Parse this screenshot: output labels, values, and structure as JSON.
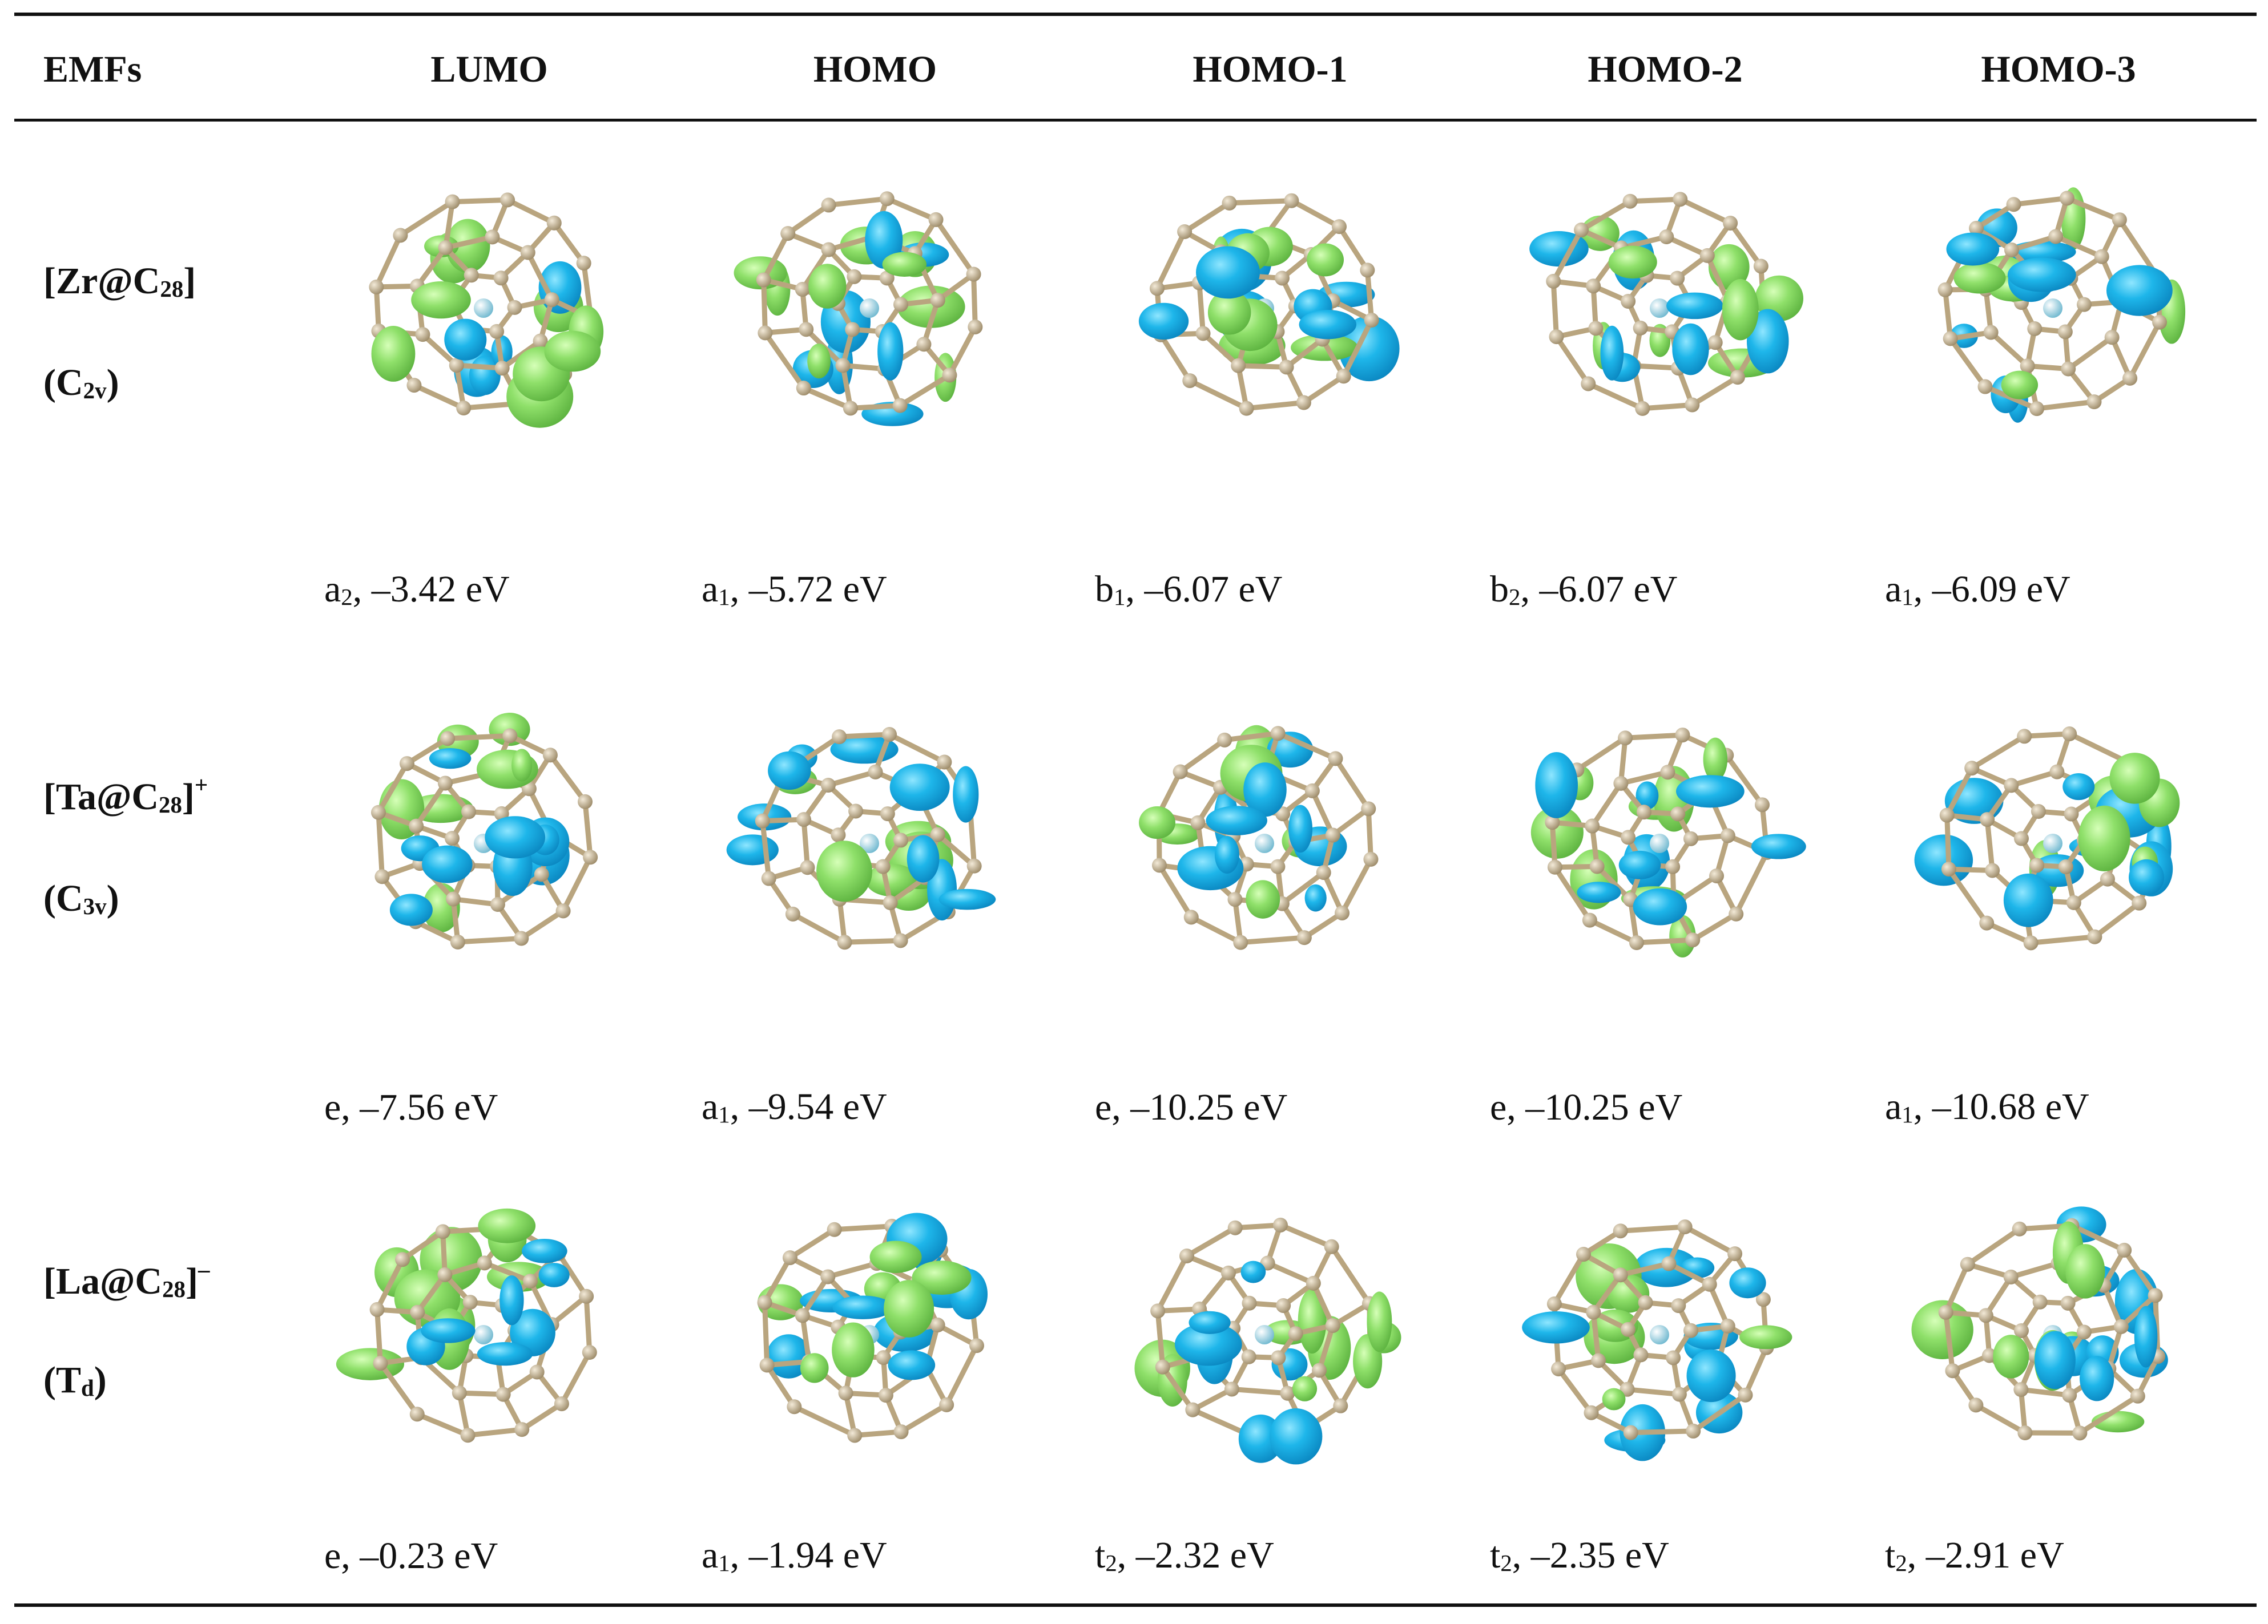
{
  "table": {
    "header": [
      "EMFs",
      "LUMO",
      "HOMO",
      "HOMO-1",
      "HOMO-2",
      "HOMO-3"
    ],
    "rows": [
      {
        "emf": [
          {
            "text": "[Zr@C"
          },
          {
            "text": "28",
            "script": "sub"
          },
          {
            "text": "]"
          }
        ],
        "symmetry": [
          {
            "text": "(C"
          },
          {
            "text": "2v",
            "script": "sub"
          },
          {
            "text": ")"
          }
        ],
        "orbitals": [
          [
            {
              "text": "a"
            },
            {
              "text": "2",
              "script": "sub"
            },
            {
              "text": ", –3.42 eV"
            }
          ],
          [
            {
              "text": "a"
            },
            {
              "text": "1",
              "script": "sub"
            },
            {
              "text": ", –5.72 eV"
            }
          ],
          [
            {
              "text": "b"
            },
            {
              "text": "1",
              "script": "sub"
            },
            {
              "text": ", –6.07 eV"
            }
          ],
          [
            {
              "text": "b"
            },
            {
              "text": "2",
              "script": "sub"
            },
            {
              "text": ", –6.07 eV"
            }
          ],
          [
            {
              "text": "a"
            },
            {
              "text": "1",
              "script": "sub"
            },
            {
              "text": ", –6.09 eV"
            }
          ]
        ]
      },
      {
        "emf": [
          {
            "text": "[Ta@C"
          },
          {
            "text": "28",
            "script": "sub"
          },
          {
            "text": "]"
          },
          {
            "text": "+",
            "script": "sup"
          }
        ],
        "symmetry": [
          {
            "text": "(C"
          },
          {
            "text": "3v",
            "script": "sub"
          },
          {
            "text": ")"
          }
        ],
        "orbitals": [
          [
            {
              "text": "e, –7.56 eV"
            }
          ],
          [
            {
              "text": "a"
            },
            {
              "text": "1",
              "script": "sub"
            },
            {
              "text": ", –9.54 eV"
            }
          ],
          [
            {
              "text": "e, –10.25 eV"
            }
          ],
          [
            {
              "text": "e, –10.25 eV"
            }
          ],
          [
            {
              "text": "a"
            },
            {
              "text": "1",
              "script": "sub"
            },
            {
              "text": ", –10.68 eV"
            }
          ]
        ]
      },
      {
        "emf": [
          {
            "text": "[La@C"
          },
          {
            "text": "28",
            "script": "sub"
          },
          {
            "text": "]"
          },
          {
            "text": "–",
            "script": "sup"
          }
        ],
        "symmetry": [
          {
            "text": "(T"
          },
          {
            "text": "d",
            "script": "sub"
          },
          {
            "text": ")"
          }
        ],
        "orbitals": [
          [
            {
              "text": "e, –0.23 eV"
            }
          ],
          [
            {
              "text": "a"
            },
            {
              "text": "1",
              "script": "sub"
            },
            {
              "text": ", –1.94 eV"
            }
          ],
          [
            {
              "text": "t"
            },
            {
              "text": "2",
              "script": "sub"
            },
            {
              "text": ", –2.32 eV"
            }
          ],
          [
            {
              "text": "t"
            },
            {
              "text": "2",
              "script": "sub"
            },
            {
              "text": ", –2.35 eV"
            }
          ],
          [
            {
              "text": "t"
            },
            {
              "text": "2",
              "script": "sub"
            },
            {
              "text": ", –2.91 eV"
            }
          ]
        ]
      }
    ]
  }
}
